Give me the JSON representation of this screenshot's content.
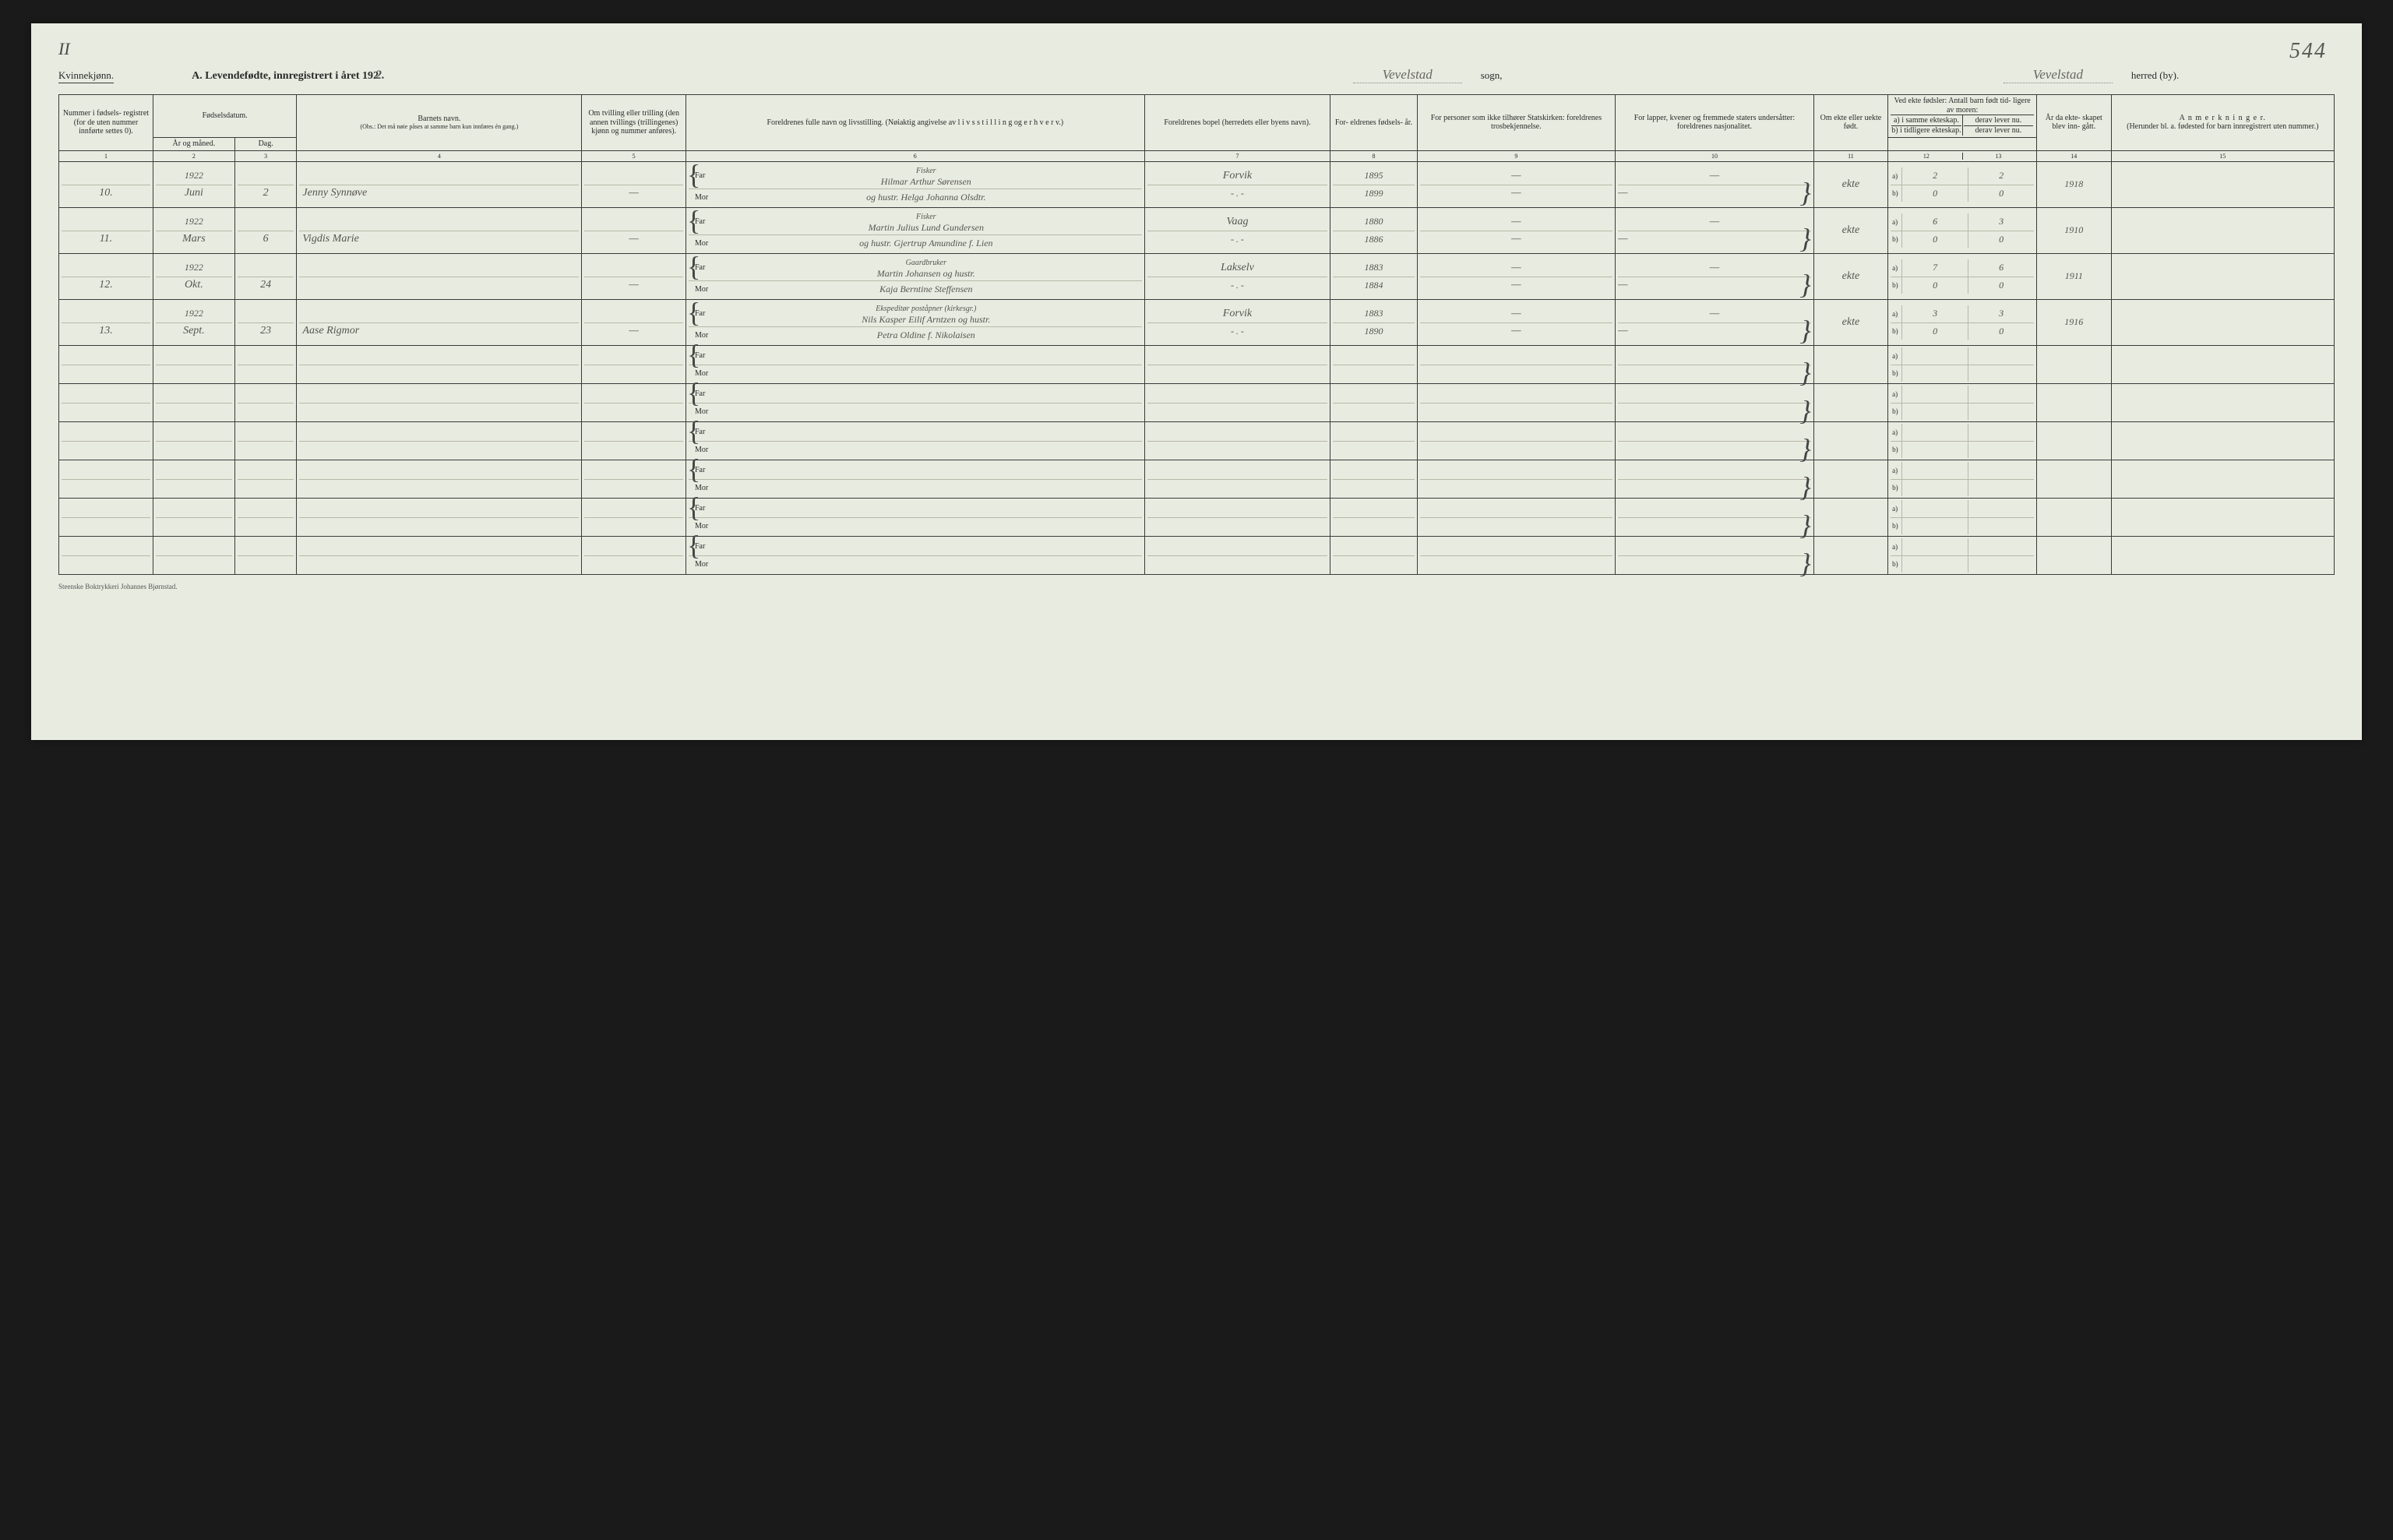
{
  "page": {
    "roman": "II",
    "page_number_hand": "544",
    "gender_label": "Kvinnekjønn.",
    "title_prefix": "A.  Levendefødte, innregistrert i året 192",
    "title_year_hand": "2.",
    "sogn_value": "Vevelstad",
    "sogn_label": "sogn,",
    "herred_value": "Vevelstad",
    "herred_label": "herred (by).",
    "footer": "Steenske Boktrykkeri Johannes Bjørnstad."
  },
  "columns": {
    "c1": "Nummer i fødsels- registret (for de uten nummer innførte settes 0).",
    "c2_group": "Fødselsdatum.",
    "c2": "År og måned.",
    "c3": "Dag.",
    "c4_title": "Barnets navn.",
    "c4_obs": "(Obs.: Det må nøie påses at samme barn kun innføres én gang.)",
    "c5": "Om tvilling eller trilling (den annen tvillings (trillingenes) kjønn og nummer anføres).",
    "c6": "Foreldrenes fulle navn og livsstilling. (Nøiaktig angivelse av  l i v s s t i l l i n g  og  e r h v e r v.)",
    "c7": "Foreldrenes bopel (herredets eller byens navn).",
    "c8": "For- eldrenes fødsels- år.",
    "c9": "For personer som ikke tilhører Statskirken: foreldrenes trosbekjennelse.",
    "c10": "For lapper, kvener og fremmede staters undersåtter: foreldrenes nasjonalitet.",
    "c11": "Om ekte eller uekte født.",
    "c12_group": "Ved ekte fødsler: Antall barn født tid- ligere av moren:",
    "c12a": "a) i samme ekteskap.",
    "c12b": "b) i tidligere ekteskap.",
    "c13a": "derav lever nu.",
    "c13b": "derav lever nu.",
    "c14": "År da ekte- skapet blev inn- gått.",
    "c15_title": "A n m e r k n i n g e r.",
    "c15_sub": "(Herunder bl. a. fødested for barn innregistrert uten nummer.)",
    "far": "Far",
    "mor": "Mor",
    "a": "a)",
    "b": "b)"
  },
  "colnums": [
    "1",
    "2",
    "3",
    "4",
    "5",
    "6",
    "7",
    "8",
    "9",
    "10",
    "11",
    "12",
    "13",
    "14",
    "15"
  ],
  "rows": [
    {
      "num": "10.",
      "year": "1922",
      "month": "Juni",
      "day": "2",
      "child": "Jenny Synnøve",
      "twin": "—",
      "far_occ": "Fisker",
      "far": "Hilmar Arthur Sørensen",
      "mor": "og hustr. Helga Johanna Olsdtr.",
      "bopel_far": "Forvik",
      "bopel_mor": "- . -",
      "faar": "1895",
      "maar": "1899",
      "c9f": "—",
      "c9m": "—",
      "c10f": "—",
      "c10m": "—",
      "ekte": "ekte",
      "a_same": "2",
      "a_prev": "0",
      "b_same": "2",
      "b_prev": "0",
      "marr": "1918",
      "anm": ""
    },
    {
      "num": "11.",
      "year": "1922",
      "month": "Mars",
      "day": "6",
      "child": "Vigdis Marie",
      "twin": "—",
      "far_occ": "Fisker",
      "far": "Martin Julius Lund Gundersen",
      "mor": "og hustr. Gjertrup Amundine f. Lien",
      "bopel_far": "Vaag",
      "bopel_mor": "- . -",
      "faar": "1880",
      "maar": "1886",
      "c9f": "—",
      "c9m": "—",
      "c10f": "—",
      "c10m": "—",
      "ekte": "ekte",
      "a_same": "6",
      "a_prev": "0",
      "b_same": "3",
      "b_prev": "0",
      "marr": "1910",
      "anm": ""
    },
    {
      "num": "12.",
      "year": "1922",
      "month": "Okt.",
      "day": "24",
      "child": "",
      "twin": "—",
      "far_occ": "Gaardbruker",
      "far": "Martin Johansen og hustr.",
      "mor": "Kaja Berntine Steffensen",
      "bopel_far": "Lakselv",
      "bopel_mor": "- . -",
      "faar": "1883",
      "maar": "1884",
      "c9f": "—",
      "c9m": "—",
      "c10f": "—",
      "c10m": "—",
      "ekte": "ekte",
      "a_same": "7",
      "a_prev": "0",
      "b_same": "6",
      "b_prev": "0",
      "marr": "1911",
      "anm": ""
    },
    {
      "num": "13.",
      "year": "1922",
      "month": "Sept.",
      "day": "23",
      "child": "Aase Rigmor",
      "twin": "—",
      "far_occ": "Ekspeditør poståpner (kirkesgr.)",
      "far": "Nils Kasper Eilif Arntzen og hustr.",
      "mor": "Petra Oldine f. Nikolaisen",
      "bopel_far": "Forvik",
      "bopel_mor": "- . -",
      "faar": "1883",
      "maar": "1890",
      "c9f": "—",
      "c9m": "—",
      "c10f": "—",
      "c10m": "—",
      "ekte": "ekte",
      "a_same": "3",
      "a_prev": "0",
      "b_same": "3",
      "b_prev": "0",
      "marr": "1916",
      "anm": ""
    }
  ],
  "empty_rows": 6
}
